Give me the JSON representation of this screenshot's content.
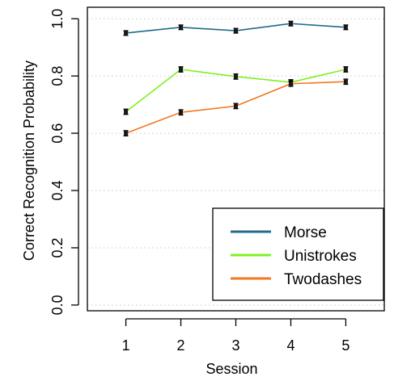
{
  "chart_data": {
    "type": "line",
    "title": "",
    "xlabel": "Session",
    "ylabel": "Correct Recognition Probability",
    "x": [
      1,
      2,
      3,
      4,
      5
    ],
    "xlim": [
      0.3,
      5.7
    ],
    "ylim": [
      -0.02,
      1.04
    ],
    "x_ticks": [
      "1",
      "2",
      "3",
      "4",
      "5"
    ],
    "y_ticks": [
      "0.0",
      "0.2",
      "0.4",
      "0.6",
      "0.8",
      "1.0"
    ],
    "grid": true,
    "legend_position": "bottom-right",
    "series": [
      {
        "name": "Morse",
        "color": "#1f6b8a",
        "values": [
          0.95,
          0.97,
          0.958,
          0.983,
          0.97
        ],
        "errors": [
          0.008,
          0.008,
          0.008,
          0.008,
          0.008
        ]
      },
      {
        "name": "Unistrokes",
        "color": "#80f020",
        "values": [
          0.675,
          0.823,
          0.798,
          0.778,
          0.823
        ],
        "errors": [
          0.009,
          0.009,
          0.009,
          0.009,
          0.009
        ]
      },
      {
        "name": "Twodashes",
        "color": "#f07820",
        "values": [
          0.6,
          0.673,
          0.695,
          0.773,
          0.78
        ],
        "errors": [
          0.009,
          0.009,
          0.009,
          0.009,
          0.009
        ]
      }
    ]
  }
}
